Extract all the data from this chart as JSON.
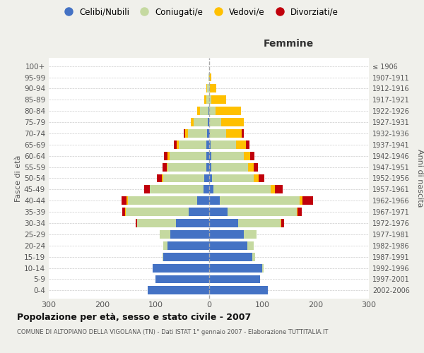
{
  "age_groups": [
    "0-4",
    "5-9",
    "10-14",
    "15-19",
    "20-24",
    "25-29",
    "30-34",
    "35-39",
    "40-44",
    "45-49",
    "50-54",
    "55-59",
    "60-64",
    "65-69",
    "70-74",
    "75-79",
    "80-84",
    "85-89",
    "90-94",
    "95-99",
    "100+"
  ],
  "birth_years": [
    "2002-2006",
    "1997-2001",
    "1992-1996",
    "1987-1991",
    "1982-1986",
    "1977-1981",
    "1972-1976",
    "1967-1971",
    "1962-1966",
    "1957-1961",
    "1952-1956",
    "1947-1951",
    "1942-1946",
    "1937-1941",
    "1932-1936",
    "1927-1931",
    "1922-1926",
    "1917-1921",
    "1912-1916",
    "1907-1911",
    "≤ 1906"
  ],
  "males": {
    "celibi": [
      115,
      100,
      105,
      85,
      78,
      72,
      62,
      38,
      22,
      10,
      8,
      5,
      5,
      4,
      3,
      2,
      1,
      0,
      0,
      0,
      0
    ],
    "coniugati": [
      0,
      0,
      0,
      2,
      8,
      20,
      72,
      118,
      130,
      100,
      78,
      72,
      68,
      52,
      36,
      26,
      16,
      5,
      3,
      1,
      0
    ],
    "vedovi": [
      0,
      0,
      0,
      0,
      0,
      0,
      0,
      1,
      2,
      1,
      2,
      2,
      4,
      4,
      5,
      6,
      5,
      3,
      1,
      0,
      0
    ],
    "divorziati": [
      0,
      0,
      0,
      0,
      0,
      0,
      3,
      5,
      10,
      10,
      9,
      8,
      7,
      5,
      3,
      0,
      0,
      0,
      0,
      0,
      0
    ]
  },
  "females": {
    "nubili": [
      110,
      96,
      100,
      82,
      72,
      65,
      55,
      35,
      20,
      8,
      6,
      4,
      4,
      3,
      2,
      1,
      0,
      0,
      0,
      0,
      0
    ],
    "coniugate": [
      0,
      0,
      2,
      5,
      12,
      25,
      80,
      130,
      150,
      108,
      78,
      70,
      62,
      48,
      30,
      22,
      12,
      4,
      2,
      1,
      0
    ],
    "vedove": [
      0,
      0,
      0,
      0,
      0,
      0,
      1,
      1,
      5,
      8,
      10,
      10,
      12,
      18,
      30,
      42,
      48,
      28,
      12,
      4,
      1
    ],
    "divorziate": [
      0,
      0,
      0,
      0,
      0,
      0,
      5,
      8,
      20,
      14,
      10,
      8,
      8,
      7,
      3,
      0,
      0,
      0,
      0,
      0,
      0
    ]
  },
  "colors": {
    "celibi": "#4472c4",
    "coniugati": "#c5d9a0",
    "vedovi": "#ffc000",
    "divorziati": "#c0000b"
  },
  "xlim": 300,
  "xlabel_right": "Femmine",
  "ylabel_left": "Fasce di età",
  "ylabel_right": "Anni di nascita",
  "title": "Popolazione per età, sesso e stato civile - 2007",
  "subtitle": "COMUNE DI ALTOPIANO DELLA VIGOLANA (TN) - Dati ISTAT 1° gennaio 2007 - Elaborazione TUTTITALIA.IT",
  "legend_labels": [
    "Celibi/Nubili",
    "Coniugati/e",
    "Vedovi/e",
    "Divorziati/e"
  ],
  "bg_color": "#f0f0eb",
  "plot_bg_color": "#ffffff",
  "grid_color": "#cccccc",
  "bar_height": 0.75
}
